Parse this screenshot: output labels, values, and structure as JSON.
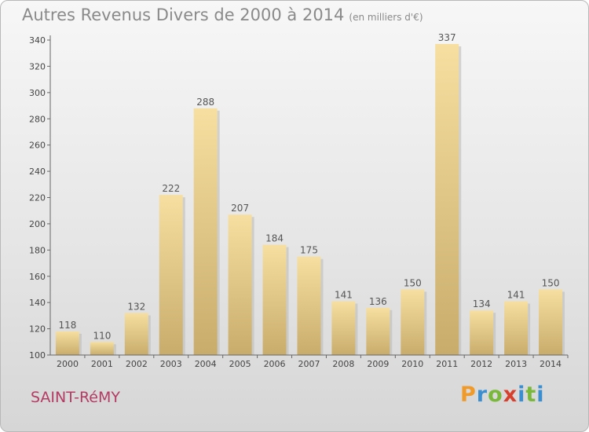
{
  "chart_data": {
    "type": "bar",
    "title": "Autres Revenus Divers de 2000 à 2014",
    "subtitle": "(en milliers d'€)",
    "categories": [
      "2000",
      "2001",
      "2002",
      "2003",
      "2004",
      "2005",
      "2006",
      "2007",
      "2008",
      "2009",
      "2010",
      "2011",
      "2012",
      "2013",
      "2014"
    ],
    "values": [
      118,
      110,
      132,
      222,
      288,
      207,
      184,
      175,
      141,
      136,
      150,
      337,
      134,
      141,
      150
    ],
    "ylim": [
      100,
      340
    ],
    "yticks": [
      100,
      120,
      140,
      160,
      180,
      200,
      220,
      240,
      260,
      280,
      300,
      320,
      340
    ],
    "grid": false,
    "bar_color": "#e8c878"
  },
  "footer": {
    "commune": "SAINT-RéMY",
    "logo": "Proxiti"
  }
}
